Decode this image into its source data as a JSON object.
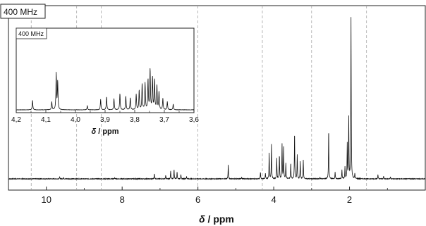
{
  "chart_data": [
    {
      "type": "line",
      "title": "400 MHz",
      "xlabel_symbol": "δ",
      "xlabel_unit": " / ppm",
      "xlim": [
        11.0,
        0.0
      ],
      "x_reversed": true,
      "ylim": [
        0,
        1
      ],
      "y_axis_shown": false,
      "x_ticks": [
        10,
        8,
        6,
        4,
        2
      ],
      "x_tick_labels": [
        "10",
        "8",
        "6",
        "4",
        "2"
      ],
      "dashed_lines_x": [
        10.4,
        9.2,
        8.55,
        6.0,
        4.3,
        3.0,
        1.55
      ],
      "grid": false,
      "series": [
        {
          "peaks": [
            {
              "x": 9.65,
              "y": 0.01
            },
            {
              "x": 9.55,
              "y": 0.008
            },
            {
              "x": 8.2,
              "y": 0.006
            },
            {
              "x": 7.15,
              "y": 0.03
            },
            {
              "x": 6.85,
              "y": 0.02
            },
            {
              "x": 6.72,
              "y": 0.045
            },
            {
              "x": 6.63,
              "y": 0.055
            },
            {
              "x": 6.55,
              "y": 0.04
            },
            {
              "x": 6.45,
              "y": 0.025
            },
            {
              "x": 6.3,
              "y": 0.015
            },
            {
              "x": 5.2,
              "y": 0.08
            },
            {
              "x": 4.85,
              "y": 0.01
            },
            {
              "x": 4.35,
              "y": 0.04
            },
            {
              "x": 4.22,
              "y": 0.03
            },
            {
              "x": 4.12,
              "y": 0.15
            },
            {
              "x": 4.06,
              "y": 0.2
            },
            {
              "x": 3.92,
              "y": 0.12
            },
            {
              "x": 3.85,
              "y": 0.14
            },
            {
              "x": 3.78,
              "y": 0.2
            },
            {
              "x": 3.74,
              "y": 0.18
            },
            {
              "x": 3.68,
              "y": 0.09
            },
            {
              "x": 3.55,
              "y": 0.09
            },
            {
              "x": 3.45,
              "y": 0.27
            },
            {
              "x": 3.38,
              "y": 0.14
            },
            {
              "x": 3.3,
              "y": 0.1
            },
            {
              "x": 3.22,
              "y": 0.11
            },
            {
              "x": 2.78,
              "y": 0.01
            },
            {
              "x": 2.55,
              "y": 0.29
            },
            {
              "x": 2.38,
              "y": 0.04
            },
            {
              "x": 2.2,
              "y": 0.05
            },
            {
              "x": 2.12,
              "y": 0.07
            },
            {
              "x": 2.06,
              "y": 0.2
            },
            {
              "x": 2.02,
              "y": 0.35
            },
            {
              "x": 1.96,
              "y": 0.93
            },
            {
              "x": 1.86,
              "y": 0.03
            },
            {
              "x": 1.25,
              "y": 0.025
            },
            {
              "x": 1.1,
              "y": 0.015
            },
            {
              "x": 0.92,
              "y": 0.012
            }
          ]
        }
      ]
    },
    {
      "type": "line",
      "title": "400 MHz",
      "xlabel_symbol": "δ",
      "xlabel_unit": " / ppm",
      "xlim": [
        4.2,
        3.6
      ],
      "x_reversed": true,
      "ylim": [
        0,
        1
      ],
      "y_axis_shown": false,
      "x_ticks": [
        4.2,
        4.1,
        4.0,
        3.9,
        3.8,
        3.7,
        3.6
      ],
      "x_tick_labels": [
        "4,2",
        "4,1",
        "4,0",
        "3,9",
        "3,8",
        "3,7",
        "3,6"
      ],
      "grid": false,
      "series": [
        {
          "peaks": [
            {
              "x": 4.145,
              "y": 0.12
            },
            {
              "x": 4.08,
              "y": 0.1
            },
            {
              "x": 4.065,
              "y": 0.45
            },
            {
              "x": 4.06,
              "y": 0.35
            },
            {
              "x": 3.96,
              "y": 0.05
            },
            {
              "x": 3.915,
              "y": 0.13
            },
            {
              "x": 3.895,
              "y": 0.16
            },
            {
              "x": 3.87,
              "y": 0.14
            },
            {
              "x": 3.85,
              "y": 0.2
            },
            {
              "x": 3.83,
              "y": 0.17
            },
            {
              "x": 3.815,
              "y": 0.15
            },
            {
              "x": 3.795,
              "y": 0.19
            },
            {
              "x": 3.785,
              "y": 0.24
            },
            {
              "x": 3.775,
              "y": 0.32
            },
            {
              "x": 3.765,
              "y": 0.33
            },
            {
              "x": 3.755,
              "y": 0.37
            },
            {
              "x": 3.748,
              "y": 0.5
            },
            {
              "x": 3.74,
              "y": 0.4
            },
            {
              "x": 3.733,
              "y": 0.37
            },
            {
              "x": 3.725,
              "y": 0.3
            },
            {
              "x": 3.718,
              "y": 0.22
            },
            {
              "x": 3.705,
              "y": 0.14
            },
            {
              "x": 3.69,
              "y": 0.1
            },
            {
              "x": 3.67,
              "y": 0.07
            }
          ]
        }
      ]
    }
  ]
}
